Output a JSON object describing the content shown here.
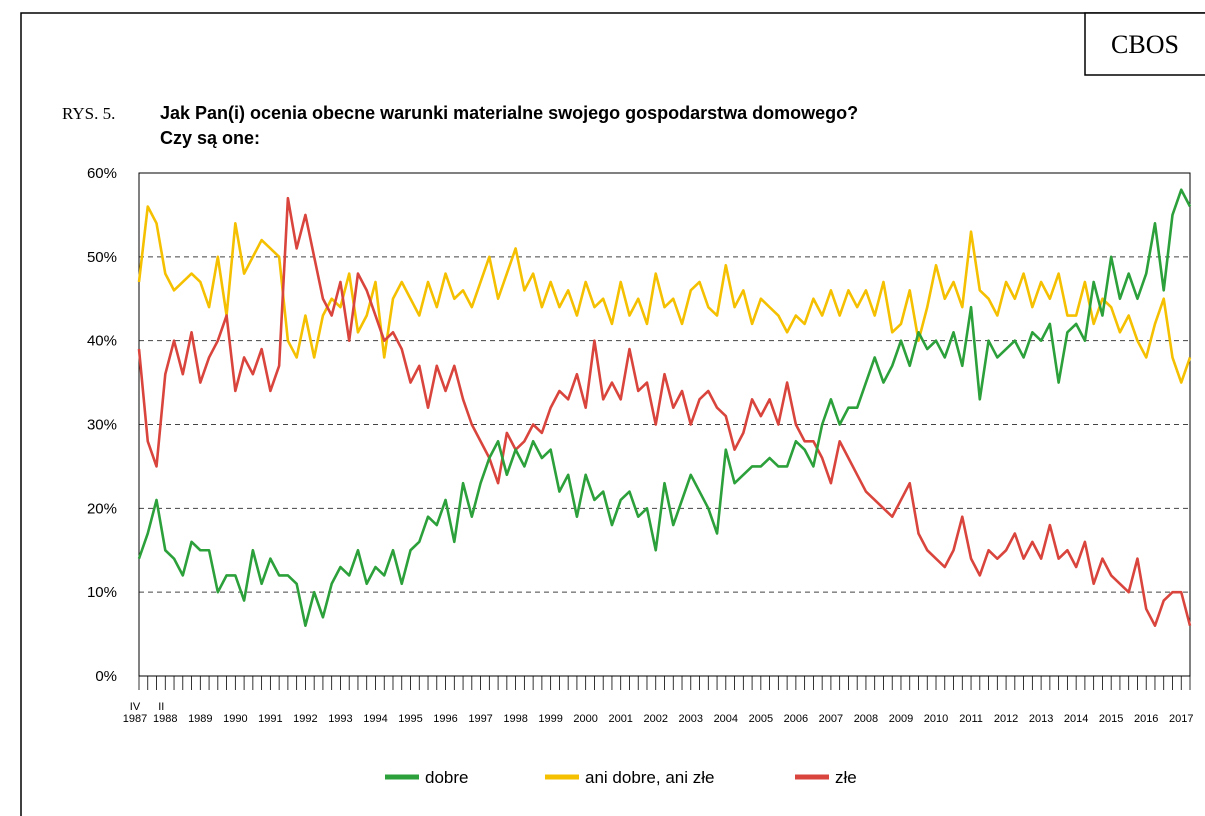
{
  "source": "CBOS",
  "figure_label": "RYS. 5.",
  "chart_data": {
    "type": "line",
    "title": [
      "Jak Pan(i) ocenia obecne warunki materialne swojego gospodarstwa domowego?",
      "Czy są one:"
    ],
    "categories": [
      "1987",
      null,
      null,
      "1988",
      null,
      null,
      null,
      "1989",
      null,
      null,
      null,
      "1990",
      null,
      null,
      null,
      "1991",
      null,
      null,
      null,
      "1992",
      null,
      null,
      null,
      "1993",
      null,
      null,
      null,
      "1994",
      null,
      null,
      null,
      "1995",
      null,
      null,
      null,
      "1996",
      null,
      null,
      null,
      "1997",
      null,
      null,
      null,
      "1998",
      null,
      null,
      null,
      "1999",
      null,
      null,
      null,
      "2000",
      null,
      null,
      null,
      "2001",
      null,
      null,
      null,
      "2002",
      null,
      null,
      null,
      "2003",
      null,
      null,
      null,
      "2004",
      null,
      null,
      null,
      "2005",
      null,
      null,
      null,
      "2006",
      null,
      null,
      null,
      "2007",
      null,
      null,
      null,
      "2008",
      null,
      null,
      null,
      "2009",
      null,
      null,
      null,
      "2010",
      null,
      null,
      null,
      "2011",
      null,
      null,
      null,
      "2012",
      null,
      null,
      null,
      "2013",
      null,
      null,
      null,
      "2014",
      null,
      null,
      null,
      "2015",
      null,
      null,
      null,
      "2016",
      null,
      null,
      null,
      "2017",
      null
    ],
    "month_labels": [
      "IV",
      null,
      null,
      "II",
      null,
      null,
      null,
      null,
      null,
      null,
      null,
      null,
      null,
      null,
      null,
      null,
      null,
      null,
      null,
      null,
      null,
      null,
      null,
      null,
      null,
      null,
      null,
      null,
      null,
      null,
      null,
      null,
      null,
      null,
      null,
      null,
      null,
      null,
      null,
      null,
      null,
      null,
      null,
      null,
      null,
      null,
      null,
      null,
      null,
      null,
      null,
      null,
      null,
      null,
      null,
      null,
      null,
      null,
      null,
      null,
      null,
      null,
      null,
      null,
      null,
      null,
      null,
      null,
      null,
      null,
      null,
      null,
      null,
      null,
      null,
      null,
      null,
      null,
      null,
      null,
      null,
      null,
      null,
      null,
      null,
      null,
      null,
      null,
      null,
      null,
      null,
      null,
      null,
      null,
      null,
      null,
      null,
      null,
      null,
      null,
      null,
      null,
      null,
      null,
      null,
      null,
      null,
      null,
      null,
      null,
      null,
      null,
      null,
      null,
      null,
      null,
      null,
      null,
      null,
      null,
      null
    ],
    "series": [
      {
        "name": "dobre",
        "color": "#2ca03a",
        "values": [
          14,
          17,
          21,
          15,
          14,
          12,
          16,
          15,
          15,
          10,
          12,
          12,
          9,
          15,
          11,
          14,
          12,
          12,
          11,
          6,
          10,
          7,
          11,
          13,
          12,
          15,
          11,
          13,
          12,
          15,
          11,
          15,
          16,
          19,
          18,
          21,
          16,
          23,
          19,
          23,
          26,
          28,
          24,
          27,
          25,
          28,
          26,
          27,
          22,
          24,
          19,
          24,
          21,
          22,
          18,
          21,
          22,
          19,
          20,
          15,
          23,
          18,
          21,
          24,
          22,
          20,
          17,
          27,
          23,
          24,
          25,
          25,
          26,
          25,
          25,
          28,
          27,
          25,
          30,
          33,
          30,
          32,
          32,
          35,
          38,
          35,
          37,
          40,
          37,
          41,
          39,
          40,
          38,
          41,
          37,
          44,
          33,
          40,
          38,
          39,
          40,
          38,
          41,
          40,
          42,
          35,
          41,
          42,
          40,
          47,
          43,
          50,
          45,
          48,
          45,
          48,
          54,
          46,
          55,
          58,
          56
        ]
      },
      {
        "name": "ani dobre, ani złe",
        "color": "#f5c000",
        "values": [
          47,
          56,
          54,
          48,
          46,
          47,
          48,
          47,
          44,
          50,
          43,
          54,
          48,
          50,
          52,
          51,
          50,
          40,
          38,
          43,
          38,
          43,
          45,
          44,
          48,
          41,
          43,
          47,
          38,
          45,
          47,
          45,
          43,
          47,
          44,
          48,
          45,
          46,
          44,
          47,
          50,
          45,
          48,
          51,
          46,
          48,
          44,
          47,
          44,
          46,
          43,
          47,
          44,
          45,
          42,
          47,
          43,
          45,
          42,
          48,
          44,
          45,
          42,
          46,
          47,
          44,
          43,
          49,
          44,
          46,
          42,
          45,
          44,
          43,
          41,
          43,
          42,
          45,
          43,
          46,
          43,
          46,
          44,
          46,
          43,
          47,
          41,
          42,
          46,
          40,
          44,
          49,
          45,
          47,
          44,
          53,
          46,
          45,
          43,
          47,
          45,
          48,
          44,
          47,
          45,
          48,
          43,
          43,
          47,
          42,
          45,
          44,
          41,
          43,
          40,
          38,
          42,
          45,
          38,
          35,
          38
        ]
      },
      {
        "name": "złe",
        "color": "#d9453d",
        "values": [
          39,
          28,
          25,
          36,
          40,
          36,
          41,
          35,
          38,
          40,
          43,
          34,
          38,
          36,
          39,
          34,
          37,
          57,
          51,
          55,
          50,
          45,
          43,
          47,
          40,
          48,
          46,
          43,
          40,
          41,
          39,
          35,
          37,
          32,
          37,
          34,
          37,
          33,
          30,
          28,
          26,
          23,
          29,
          27,
          28,
          30,
          29,
          32,
          34,
          33,
          36,
          32,
          40,
          33,
          35,
          33,
          39,
          34,
          35,
          30,
          36,
          32,
          34,
          30,
          33,
          34,
          32,
          31,
          27,
          29,
          33,
          31,
          33,
          30,
          35,
          30,
          28,
          28,
          26,
          23,
          28,
          26,
          24,
          22,
          21,
          20,
          19,
          21,
          23,
          17,
          15,
          14,
          13,
          15,
          19,
          14,
          12,
          15,
          14,
          15,
          17,
          14,
          16,
          14,
          18,
          14,
          15,
          13,
          16,
          11,
          14,
          12,
          11,
          10,
          14,
          8,
          6,
          9,
          10,
          10,
          6
        ]
      }
    ],
    "ylim": [
      0,
      60
    ],
    "yticks": [
      {
        "value": 0,
        "label": "0%"
      },
      {
        "value": 10,
        "label": "10%"
      },
      {
        "value": 20,
        "label": "20%"
      },
      {
        "value": 30,
        "label": "30%"
      },
      {
        "value": 40,
        "label": "40%"
      },
      {
        "value": 50,
        "label": "50%"
      },
      {
        "value": 60,
        "label": "60%"
      }
    ],
    "grid": true,
    "legend": "bottom"
  }
}
